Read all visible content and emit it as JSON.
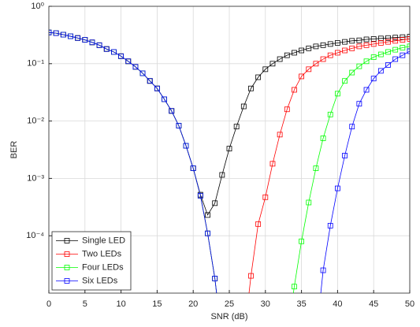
{
  "chart_data": {
    "type": "line",
    "x_label": "SNR (dB)",
    "y_label": "BER",
    "xlim": [
      0,
      50
    ],
    "xticks": [
      0,
      5,
      10,
      15,
      20,
      25,
      30,
      35,
      40,
      45,
      50
    ],
    "ylim": [
      1e-05,
      1
    ],
    "y_log": true,
    "yticks": [
      {
        "value": 1,
        "label": "10⁰"
      },
      {
        "value": 0.1,
        "label": "10⁻¹"
      },
      {
        "value": 0.01,
        "label": "10⁻²"
      },
      {
        "value": 0.001,
        "label": "10⁻³"
      },
      {
        "value": 0.0001,
        "label": "10⁻⁴"
      }
    ],
    "grid": true,
    "legend": "lower left",
    "x": [
      0,
      1,
      2,
      3,
      4,
      5,
      6,
      7,
      8,
      9,
      10,
      11,
      12,
      13,
      14,
      15,
      16,
      17,
      18,
      19,
      20,
      21,
      22,
      23,
      24,
      25,
      26,
      27,
      28,
      29,
      30,
      31,
      32,
      33,
      34,
      35,
      36,
      37,
      38,
      39,
      40,
      41,
      42,
      43,
      44,
      45,
      46,
      47,
      48,
      49,
      50
    ],
    "series": [
      {
        "name": "Single LED",
        "color": "#000000",
        "values": [
          0.35,
          0.34,
          0.32,
          0.3,
          0.28,
          0.26,
          0.235,
          0.21,
          0.18,
          0.16,
          0.135,
          0.11,
          0.088,
          0.068,
          0.05,
          0.037,
          0.024,
          0.015,
          0.0083,
          0.0037,
          0.0015,
          0.00052,
          0.00023,
          0.00037,
          0.00115,
          0.0033,
          0.008,
          0.018,
          0.037,
          0.058,
          0.08,
          0.1,
          0.12,
          0.14,
          0.155,
          0.17,
          0.185,
          0.2,
          0.21,
          0.22,
          0.23,
          0.24,
          0.25,
          0.255,
          0.265,
          0.27,
          0.275,
          0.28,
          0.285,
          0.29,
          0.295
        ]
      },
      {
        "name": "Two LEDs",
        "color": "#ff0000",
        "values": [
          0.35,
          0.34,
          0.32,
          0.3,
          0.28,
          0.26,
          0.235,
          0.21,
          0.18,
          0.16,
          0.135,
          0.11,
          0.088,
          0.068,
          0.05,
          0.037,
          0.024,
          0.015,
          0.0083,
          0.0037,
          0.0015,
          0.0005,
          0.00011,
          1.8e-05,
          1.5e-06,
          null,
          null,
          1.5e-06,
          2e-05,
          0.00016,
          0.00047,
          0.0018,
          0.0058,
          0.016,
          0.035,
          0.06,
          0.08,
          0.1,
          0.12,
          0.14,
          0.155,
          0.17,
          0.185,
          0.2,
          0.21,
          0.22,
          0.23,
          0.24,
          0.25,
          0.26,
          0.27
        ]
      },
      {
        "name": "Four LEDs",
        "color": "#00ff00",
        "values": [
          0.35,
          0.34,
          0.32,
          0.3,
          0.28,
          0.26,
          0.235,
          0.21,
          0.18,
          0.16,
          0.135,
          0.11,
          0.088,
          0.068,
          0.05,
          0.037,
          0.024,
          0.015,
          0.0083,
          0.0037,
          0.0015,
          0.0005,
          0.00011,
          1.8e-05,
          1.5e-06,
          null,
          null,
          null,
          null,
          null,
          null,
          null,
          null,
          1.5e-06,
          1.3e-05,
          8e-05,
          0.00038,
          0.0015,
          0.005,
          0.013,
          0.03,
          0.05,
          0.07,
          0.09,
          0.11,
          0.13,
          0.145,
          0.16,
          0.175,
          0.19,
          0.2
        ]
      },
      {
        "name": "Six LEDs",
        "color": "#0000ff",
        "values": [
          0.35,
          0.34,
          0.32,
          0.3,
          0.28,
          0.26,
          0.235,
          0.21,
          0.18,
          0.16,
          0.135,
          0.11,
          0.088,
          0.068,
          0.05,
          0.037,
          0.024,
          0.015,
          0.0083,
          0.0037,
          0.0015,
          0.0005,
          0.00011,
          1.8e-05,
          1.5e-06,
          null,
          null,
          null,
          null,
          null,
          null,
          null,
          null,
          null,
          null,
          null,
          null,
          1.5e-06,
          2.5e-05,
          0.00015,
          0.00067,
          0.0025,
          0.008,
          0.02,
          0.035,
          0.055,
          0.075,
          0.095,
          0.12,
          0.14,
          0.165
        ]
      }
    ]
  }
}
